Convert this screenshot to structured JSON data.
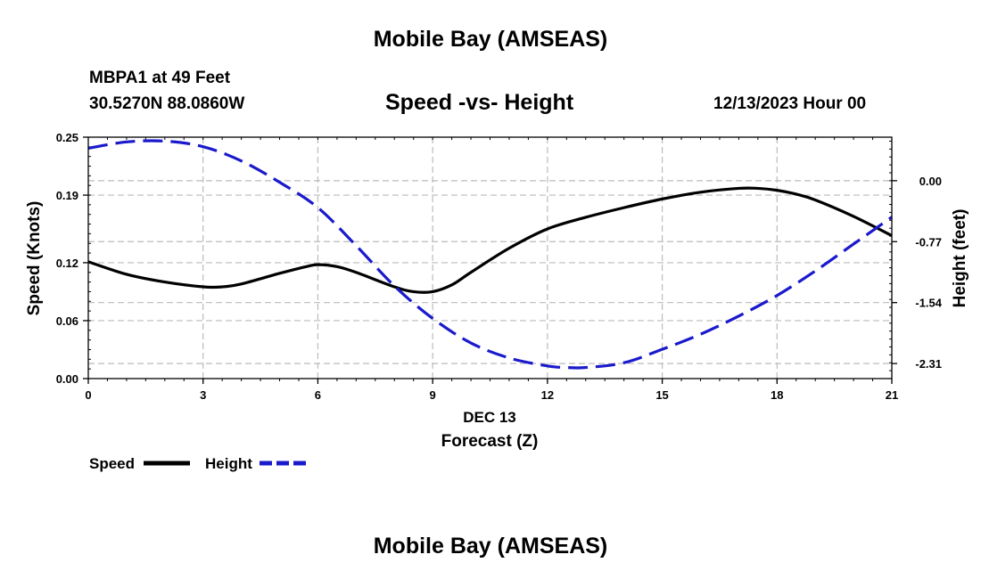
{
  "header": {
    "title_top": "Mobile Bay (AMSEAS)",
    "station_name": "MBPA1 at 49 Feet",
    "station_coords": "30.5270N  88.0860W",
    "subtitle": "Speed -vs- Height",
    "run_time": "12/13/2023 Hour 00"
  },
  "footer": {
    "title_bottom": "Mobile Bay (AMSEAS)"
  },
  "colors": {
    "speed": "#000000",
    "height": "#1a1acc",
    "grid": "#bbbbbb"
  },
  "chart_data": {
    "type": "line",
    "title": "Speed -vs- Height",
    "xlabel": "Forecast (Z)",
    "xlabel_date": "DEC 13",
    "ylabel_left": "Speed (Knots)",
    "ylabel_right": "Height (feet)",
    "xlim": [
      0,
      21
    ],
    "x_ticks": [
      0,
      3,
      6,
      9,
      12,
      15,
      18,
      21
    ],
    "x_tick_labels": [
      "0",
      "3",
      "6",
      "9",
      "12",
      "15",
      "18",
      "21"
    ],
    "ylim_left": [
      0,
      0.25
    ],
    "y_left_ticks": [
      0,
      0.06,
      0.12,
      0.19,
      0.25
    ],
    "y_left_tick_labels": [
      "0.00",
      "0.06",
      "0.12",
      "0.19",
      "0.25"
    ],
    "ylim_right": [
      -2.5,
      0.55
    ],
    "y_right_ticks": [
      0,
      -0.77,
      -1.54,
      -2.31
    ],
    "y_right_tick_labels": [
      "0.00",
      "-0.77",
      "-1.54",
      "-2.31"
    ],
    "grid": true,
    "legend_position": "bottom-left",
    "series": [
      {
        "name": "Speed",
        "axis": "left",
        "style": "solid",
        "x": [
          0,
          1,
          2,
          3,
          3.5,
          4,
          5,
          5.7,
          6,
          6.5,
          7,
          8,
          8.5,
          9,
          9.5,
          10,
          11,
          12,
          13,
          14,
          15,
          16,
          17,
          17.5,
          18,
          18.5,
          19,
          20,
          21
        ],
        "values": [
          0.121,
          0.108,
          0.1,
          0.095,
          0.095,
          0.098,
          0.109,
          0.116,
          0.118,
          0.116,
          0.11,
          0.095,
          0.09,
          0.09,
          0.097,
          0.11,
          0.135,
          0.155,
          0.167,
          0.177,
          0.186,
          0.193,
          0.197,
          0.197,
          0.195,
          0.191,
          0.185,
          0.168,
          0.148
        ]
      },
      {
        "name": "Height",
        "axis": "right",
        "style": "dashed",
        "x": [
          0,
          1,
          2,
          3,
          4,
          5,
          6,
          7,
          8,
          9,
          10,
          11,
          12,
          12.5,
          13,
          14,
          15,
          16,
          17,
          18,
          19,
          20,
          21
        ],
        "values": [
          0.41,
          0.49,
          0.5,
          0.43,
          0.25,
          -0.02,
          -0.34,
          -0.82,
          -1.33,
          -1.74,
          -2.05,
          -2.24,
          -2.34,
          -2.36,
          -2.36,
          -2.3,
          -2.13,
          -1.94,
          -1.71,
          -1.45,
          -1.14,
          -0.8,
          -0.46
        ]
      }
    ]
  }
}
